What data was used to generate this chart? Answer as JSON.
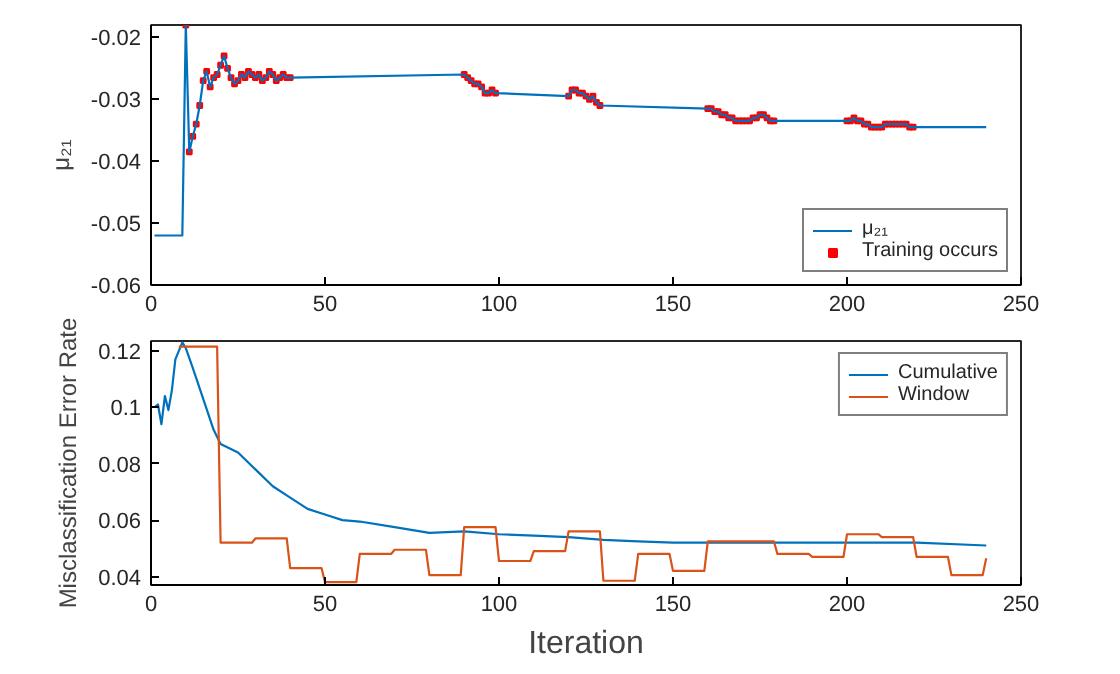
{
  "chart_data": [
    {
      "type": "line",
      "ylabel": "μ₂₁",
      "xlim": [
        0,
        250
      ],
      "xticks": [
        0,
        50,
        100,
        150,
        200,
        250
      ],
      "ylim": [
        -0.06,
        -0.018
      ],
      "yticks": [
        -0.06,
        -0.05,
        -0.04,
        -0.03,
        -0.02
      ],
      "grid": false,
      "legend": "bottom right",
      "series": [
        {
          "name": "μ₂₁",
          "type": "line",
          "color": "#0072bd",
          "marker": "none",
          "x": [
            1,
            9,
            10,
            11,
            12,
            13,
            14,
            15,
            16,
            17,
            18,
            19,
            20,
            21,
            22,
            23,
            24,
            25,
            26,
            27,
            28,
            29,
            30,
            31,
            32,
            33,
            34,
            35,
            36,
            37,
            38,
            39,
            40,
            90,
            91,
            92,
            93,
            94,
            95,
            96,
            97,
            98,
            99,
            120,
            121,
            122,
            123,
            124,
            125,
            126,
            127,
            128,
            129,
            160,
            161,
            162,
            163,
            164,
            165,
            166,
            167,
            168,
            169,
            170,
            171,
            172,
            173,
            174,
            175,
            176,
            177,
            178,
            179,
            200,
            201,
            202,
            203,
            204,
            205,
            206,
            207,
            208,
            209,
            210,
            211,
            212,
            213,
            214,
            215,
            216,
            217,
            218,
            219,
            240
          ],
          "values": [
            -0.052,
            -0.052,
            -0.018,
            -0.0385,
            -0.036,
            -0.034,
            -0.031,
            -0.027,
            -0.0255,
            -0.028,
            -0.0265,
            -0.026,
            -0.0245,
            -0.023,
            -0.025,
            -0.0265,
            -0.0275,
            -0.027,
            -0.026,
            -0.0265,
            -0.0255,
            -0.026,
            -0.0265,
            -0.026,
            -0.027,
            -0.0265,
            -0.0255,
            -0.026,
            -0.027,
            -0.0265,
            -0.026,
            -0.0265,
            -0.0265,
            -0.026,
            -0.0265,
            -0.027,
            -0.0275,
            -0.0275,
            -0.028,
            -0.029,
            -0.029,
            -0.0285,
            -0.029,
            -0.0295,
            -0.0285,
            -0.0285,
            -0.029,
            -0.029,
            -0.0295,
            -0.03,
            -0.0295,
            -0.0305,
            -0.031,
            -0.0315,
            -0.0315,
            -0.032,
            -0.032,
            -0.0325,
            -0.0325,
            -0.033,
            -0.033,
            -0.0335,
            -0.0335,
            -0.0335,
            -0.0335,
            -0.0335,
            -0.033,
            -0.033,
            -0.0325,
            -0.0325,
            -0.033,
            -0.0335,
            -0.0335,
            -0.0335,
            -0.0335,
            -0.033,
            -0.0335,
            -0.0335,
            -0.034,
            -0.034,
            -0.0345,
            -0.0345,
            -0.0345,
            -0.0345,
            -0.034,
            -0.034,
            -0.034,
            -0.034,
            -0.034,
            -0.034,
            -0.034,
            -0.0345,
            -0.0345,
            -0.0345
          ]
        },
        {
          "name": "Training occurs",
          "type": "scatter",
          "color": "#ff0000",
          "marker": "square",
          "x": [
            10,
            11,
            12,
            13,
            14,
            15,
            16,
            17,
            18,
            19,
            20,
            21,
            22,
            23,
            24,
            25,
            26,
            27,
            28,
            29,
            30,
            31,
            32,
            33,
            34,
            35,
            36,
            37,
            38,
            39,
            40,
            90,
            91,
            92,
            93,
            94,
            95,
            96,
            97,
            98,
            99,
            120,
            121,
            122,
            123,
            124,
            125,
            126,
            127,
            128,
            129,
            160,
            161,
            162,
            163,
            164,
            165,
            166,
            167,
            168,
            169,
            170,
            171,
            172,
            173,
            174,
            175,
            176,
            177,
            178,
            179,
            200,
            201,
            202,
            203,
            204,
            205,
            206,
            207,
            208,
            209,
            210,
            211,
            212,
            213,
            214,
            215,
            216,
            217,
            218,
            219
          ],
          "values": [
            -0.018,
            -0.0385,
            -0.036,
            -0.034,
            -0.031,
            -0.027,
            -0.0255,
            -0.028,
            -0.0265,
            -0.026,
            -0.0245,
            -0.023,
            -0.025,
            -0.0265,
            -0.0275,
            -0.027,
            -0.026,
            -0.0265,
            -0.0255,
            -0.026,
            -0.0265,
            -0.026,
            -0.027,
            -0.0265,
            -0.0255,
            -0.026,
            -0.027,
            -0.0265,
            -0.026,
            -0.0265,
            -0.0265,
            -0.026,
            -0.0265,
            -0.027,
            -0.0275,
            -0.0275,
            -0.028,
            -0.029,
            -0.029,
            -0.0285,
            -0.029,
            -0.0295,
            -0.0285,
            -0.0285,
            -0.029,
            -0.029,
            -0.0295,
            -0.03,
            -0.0295,
            -0.0305,
            -0.031,
            -0.0315,
            -0.0315,
            -0.032,
            -0.032,
            -0.0325,
            -0.0325,
            -0.033,
            -0.033,
            -0.0335,
            -0.0335,
            -0.0335,
            -0.0335,
            -0.0335,
            -0.033,
            -0.033,
            -0.0325,
            -0.0325,
            -0.033,
            -0.0335,
            -0.0335,
            -0.0335,
            -0.0335,
            -0.033,
            -0.0335,
            -0.0335,
            -0.034,
            -0.034,
            -0.0345,
            -0.0345,
            -0.0345,
            -0.0345,
            -0.034,
            -0.034,
            -0.034,
            -0.034,
            -0.034,
            -0.034,
            -0.034,
            -0.0345,
            -0.0345
          ]
        }
      ]
    },
    {
      "type": "line",
      "xlabel": "Iteration",
      "ylabel": "Misclassification Error Rate",
      "xlim": [
        0,
        250
      ],
      "xticks": [
        0,
        50,
        100,
        150,
        200,
        250
      ],
      "ylim": [
        0.037,
        0.1235
      ],
      "yticks": [
        0.04,
        0.06,
        0.08,
        {
          "value": 0.1,
          "label": "0.1"
        },
        0.12
      ],
      "grid": false,
      "legend": "top right",
      "series": [
        {
          "name": "Cumulative",
          "color": "#0072bd",
          "x": [
            1,
            2,
            3,
            4,
            5,
            6,
            7,
            8,
            9,
            10,
            12,
            15,
            18,
            20,
            25,
            30,
            35,
            40,
            45,
            50,
            55,
            60,
            70,
            80,
            90,
            100,
            110,
            120,
            130,
            140,
            150,
            170,
            200,
            220,
            240
          ],
          "values": [
            0.1,
            0.101,
            0.094,
            0.104,
            0.099,
            0.106,
            0.117,
            0.12,
            0.123,
            0.121,
            0.114,
            0.103,
            0.092,
            0.087,
            0.084,
            0.078,
            0.072,
            0.068,
            0.064,
            0.062,
            0.06,
            0.0595,
            0.0575,
            0.0555,
            0.056,
            0.055,
            0.0545,
            0.054,
            0.053,
            0.0525,
            0.052,
            0.052,
            0.052,
            0.052,
            0.051
          ]
        },
        {
          "name": "Window",
          "color": "#d95319",
          "x": [
            8,
            19,
            20,
            29,
            30,
            39,
            40,
            49,
            50,
            59,
            60,
            69,
            70,
            79,
            80,
            89,
            90,
            99,
            100,
            109,
            110,
            119,
            120,
            129,
            130,
            139,
            140,
            149,
            150,
            159,
            160,
            179,
            180,
            189,
            190,
            199,
            200,
            209,
            210,
            219,
            220,
            229,
            230,
            239,
            240
          ],
          "values": [
            0.1215,
            0.1215,
            0.052,
            0.052,
            0.0535,
            0.0535,
            0.043,
            0.043,
            0.038,
            0.038,
            0.048,
            0.048,
            0.0495,
            0.0495,
            0.0405,
            0.0405,
            0.0575,
            0.0575,
            0.0455,
            0.0455,
            0.049,
            0.049,
            0.056,
            0.056,
            0.0385,
            0.0385,
            0.048,
            0.048,
            0.042,
            0.042,
            0.0525,
            0.0525,
            0.048,
            0.048,
            0.047,
            0.047,
            0.055,
            0.055,
            0.054,
            0.054,
            0.047,
            0.047,
            0.0405,
            0.0405,
            0.0465
          ]
        }
      ]
    }
  ]
}
